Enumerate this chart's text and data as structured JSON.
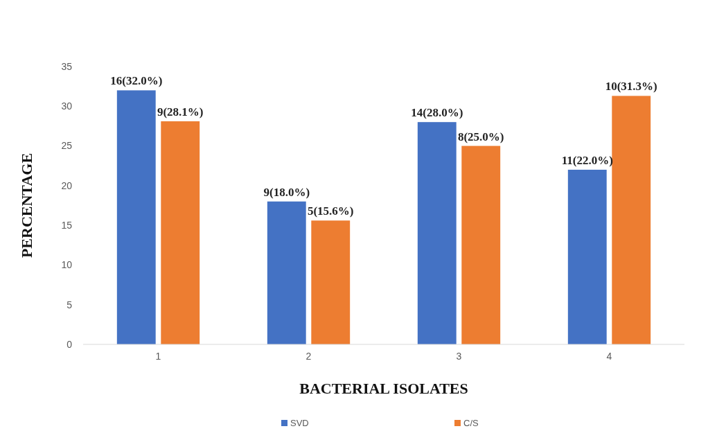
{
  "chart_data": {
    "type": "bar",
    "xlabel": "BACTERIAL ISOLATES",
    "ylabel": "PERCENTAGE",
    "categories": [
      "1",
      "2",
      "3",
      "4"
    ],
    "series": [
      {
        "name": "SVD",
        "color": "#4472c4",
        "values": [
          32.0,
          18.0,
          28.0,
          22.0
        ],
        "value_labels": [
          "16(32.0%)",
          "9(18.0%)",
          "14(28.0%)",
          "11(22.0%)"
        ]
      },
      {
        "name": "C/S",
        "color": "#ed7d31",
        "values": [
          28.1,
          15.6,
          25.0,
          31.3
        ],
        "value_labels": [
          "9(28.1%)",
          "5(15.6%)",
          "8(25.0%)",
          "10(31.3%)"
        ]
      }
    ],
    "ylim": [
      0,
      35
    ],
    "yticks": [
      0,
      5,
      10,
      15,
      20,
      25,
      30,
      35
    ],
    "grid": false,
    "legend": "bottom"
  }
}
